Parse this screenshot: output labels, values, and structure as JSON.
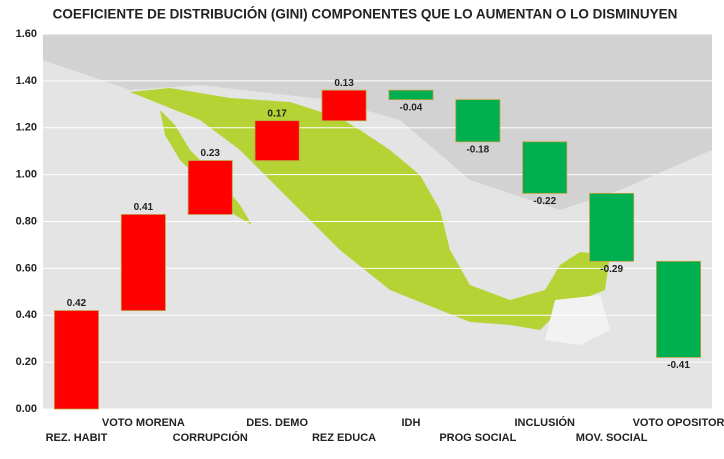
{
  "chart_data": {
    "type": "waterfall",
    "title": "COEFICIENTE DE DISTRIBUCIÓN (GINI)  COMPONENTES QUE LO AUMENTAN O LO DISMINUYEN",
    "categories": [
      "REZ. HABIT",
      "VOTO MORENA",
      "CORRUPCIÓN",
      "DES. DEMO",
      "REZ EDUCA",
      "IDH",
      "PROG SOCIAL",
      "INCLUSIÓN",
      "MOV. SOCIAL",
      "VOTO OPOSITOR"
    ],
    "values": [
      0.42,
      0.41,
      0.23,
      0.17,
      0.13,
      -0.04,
      -0.18,
      -0.22,
      -0.29,
      -0.41
    ],
    "increase_color": "#ff0000",
    "decrease_color": "#00b050",
    "ylim": [
      0,
      1.6
    ],
    "yticks": [
      {
        "value": 0,
        "label": "0.00"
      },
      {
        "value": 0.2,
        "label": "0.20"
      },
      {
        "value": 0.4,
        "label": "0.40"
      },
      {
        "value": 0.6,
        "label": "0.60"
      },
      {
        "value": 0.8,
        "label": "0.80"
      },
      {
        "value": 1.0,
        "label": "1.00"
      },
      {
        "value": 1.2,
        "label": "1.20"
      },
      {
        "value": 1.4,
        "label": "1.40"
      },
      {
        "value": 1.6,
        "label": "1.60"
      }
    ],
    "grid": true
  }
}
